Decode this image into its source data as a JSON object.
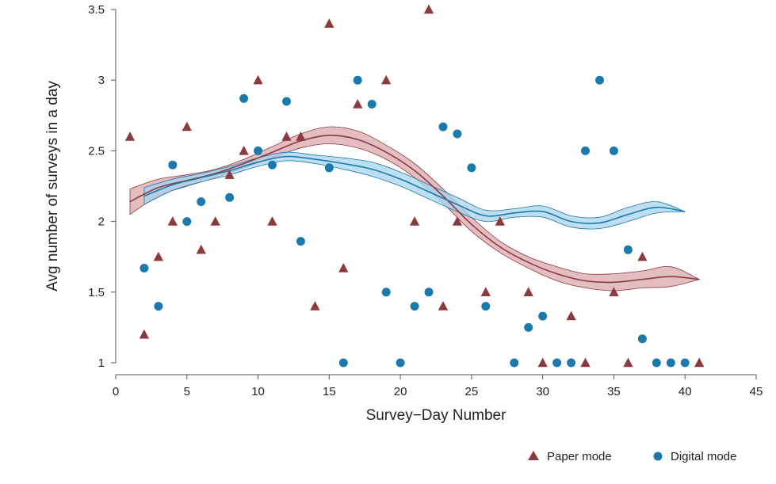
{
  "chart_data": {
    "type": "scatter",
    "title": "",
    "xlabel": "Survey−Day Number",
    "ylabel": "Avg number of surveys in a day",
    "xlim": [
      0,
      45
    ],
    "ylim": [
      1,
      3.5
    ],
    "xticks": [
      0,
      5,
      10,
      15,
      20,
      25,
      30,
      35,
      40,
      45
    ],
    "yticks": [
      1,
      1.5,
      2,
      2.5,
      3,
      3.5
    ],
    "xtick_labels": [
      "0",
      "5",
      "10",
      "15",
      "20",
      "25",
      "30",
      "35",
      "40",
      "45"
    ],
    "ytick_labels": [
      "1",
      "1.5",
      "2",
      "2.5",
      "3",
      "3.5"
    ],
    "legend_position": "bottom-right",
    "series": [
      {
        "name": "Paper mode",
        "marker": "triangle",
        "color": "#8b3a3e",
        "points": [
          [
            1,
            2.6
          ],
          [
            2,
            1.2
          ],
          [
            3,
            1.75
          ],
          [
            4,
            2.0
          ],
          [
            5,
            2.67
          ],
          [
            6,
            1.8
          ],
          [
            7,
            2.0
          ],
          [
            8,
            2.33
          ],
          [
            9,
            2.5
          ],
          [
            10,
            3.0
          ],
          [
            11,
            2.0
          ],
          [
            12,
            2.6
          ],
          [
            13,
            2.6
          ],
          [
            14,
            1.4
          ],
          [
            15,
            3.4
          ],
          [
            16,
            1.67
          ],
          [
            17,
            2.83
          ],
          [
            19,
            3.0
          ],
          [
            21,
            2.0
          ],
          [
            22,
            3.5
          ],
          [
            23,
            1.4
          ],
          [
            24,
            2.0
          ],
          [
            26,
            1.5
          ],
          [
            27,
            2.0
          ],
          [
            29,
            1.5
          ],
          [
            30,
            1.0
          ],
          [
            32,
            1.33
          ],
          [
            33,
            1.0
          ],
          [
            35,
            1.5
          ],
          [
            36,
            1.0
          ],
          [
            37,
            1.75
          ],
          [
            41,
            1.0
          ]
        ]
      },
      {
        "name": "Digital mode",
        "marker": "circle",
        "color": "#1b7aab",
        "points": [
          [
            2,
            1.67
          ],
          [
            3,
            1.4
          ],
          [
            4,
            2.4
          ],
          [
            5,
            2.0
          ],
          [
            6,
            2.14
          ],
          [
            8,
            2.17
          ],
          [
            9,
            2.87
          ],
          [
            10,
            2.5
          ],
          [
            11,
            2.4
          ],
          [
            12,
            2.85
          ],
          [
            13,
            1.86
          ],
          [
            15,
            2.38
          ],
          [
            16,
            1.0
          ],
          [
            17,
            3.0
          ],
          [
            18,
            2.83
          ],
          [
            19,
            1.5
          ],
          [
            20,
            1.0
          ],
          [
            21,
            1.4
          ],
          [
            22,
            1.5
          ],
          [
            23,
            2.67
          ],
          [
            24,
            2.62
          ],
          [
            25,
            2.38
          ],
          [
            26,
            1.4
          ],
          [
            28,
            1.0
          ],
          [
            29,
            1.25
          ],
          [
            30,
            1.33
          ],
          [
            31,
            1.0
          ],
          [
            32,
            1.0
          ],
          [
            33,
            2.5
          ],
          [
            34,
            3.0
          ],
          [
            35,
            2.5
          ],
          [
            36,
            1.8
          ],
          [
            37,
            1.17
          ],
          [
            38,
            1.0
          ],
          [
            39,
            1.0
          ],
          [
            40,
            1.0
          ]
        ]
      }
    ],
    "smooths": [
      {
        "name": "Paper mode smooth",
        "color": "#8b3a3e",
        "fill": "#d9a7a9",
        "x": [
          1,
          3,
          5,
          7,
          9,
          11,
          13,
          15,
          17,
          19,
          21,
          23,
          25,
          27,
          29,
          31,
          33,
          35,
          37,
          39,
          41
        ],
        "y": [
          2.14,
          2.24,
          2.29,
          2.34,
          2.41,
          2.49,
          2.57,
          2.61,
          2.58,
          2.49,
          2.36,
          2.18,
          1.98,
          1.82,
          1.71,
          1.63,
          1.58,
          1.57,
          1.59,
          1.61,
          1.59
        ],
        "lower": [
          2.05,
          2.18,
          2.25,
          2.31,
          2.38,
          2.45,
          2.52,
          2.55,
          2.52,
          2.44,
          2.31,
          2.13,
          1.93,
          1.78,
          1.67,
          1.58,
          1.53,
          1.51,
          1.53,
          1.54,
          1.59
        ],
        "upper": [
          2.23,
          2.3,
          2.33,
          2.37,
          2.44,
          2.53,
          2.62,
          2.67,
          2.64,
          2.54,
          2.41,
          2.23,
          2.03,
          1.86,
          1.75,
          1.68,
          1.63,
          1.63,
          1.65,
          1.68,
          1.59
        ]
      },
      {
        "name": "Digital mode smooth",
        "color": "#1b7aab",
        "fill": "#a8d4ee",
        "x": [
          2,
          4,
          6,
          8,
          10,
          12,
          14,
          16,
          18,
          20,
          22,
          24,
          26,
          28,
          30,
          32,
          34,
          36,
          38,
          40
        ],
        "y": [
          2.18,
          2.26,
          2.31,
          2.36,
          2.42,
          2.46,
          2.44,
          2.41,
          2.37,
          2.3,
          2.21,
          2.12,
          2.04,
          2.06,
          2.07,
          2.0,
          1.99,
          2.05,
          2.1,
          2.07
        ],
        "lower": [
          2.12,
          2.22,
          2.28,
          2.33,
          2.39,
          2.43,
          2.41,
          2.37,
          2.32,
          2.25,
          2.16,
          2.07,
          2.0,
          2.03,
          2.03,
          1.96,
          1.95,
          2.0,
          2.06,
          2.07
        ],
        "upper": [
          2.24,
          2.3,
          2.34,
          2.39,
          2.45,
          2.49,
          2.47,
          2.45,
          2.42,
          2.35,
          2.26,
          2.17,
          2.08,
          2.09,
          2.11,
          2.04,
          2.03,
          2.1,
          2.14,
          2.07
        ]
      }
    ]
  }
}
